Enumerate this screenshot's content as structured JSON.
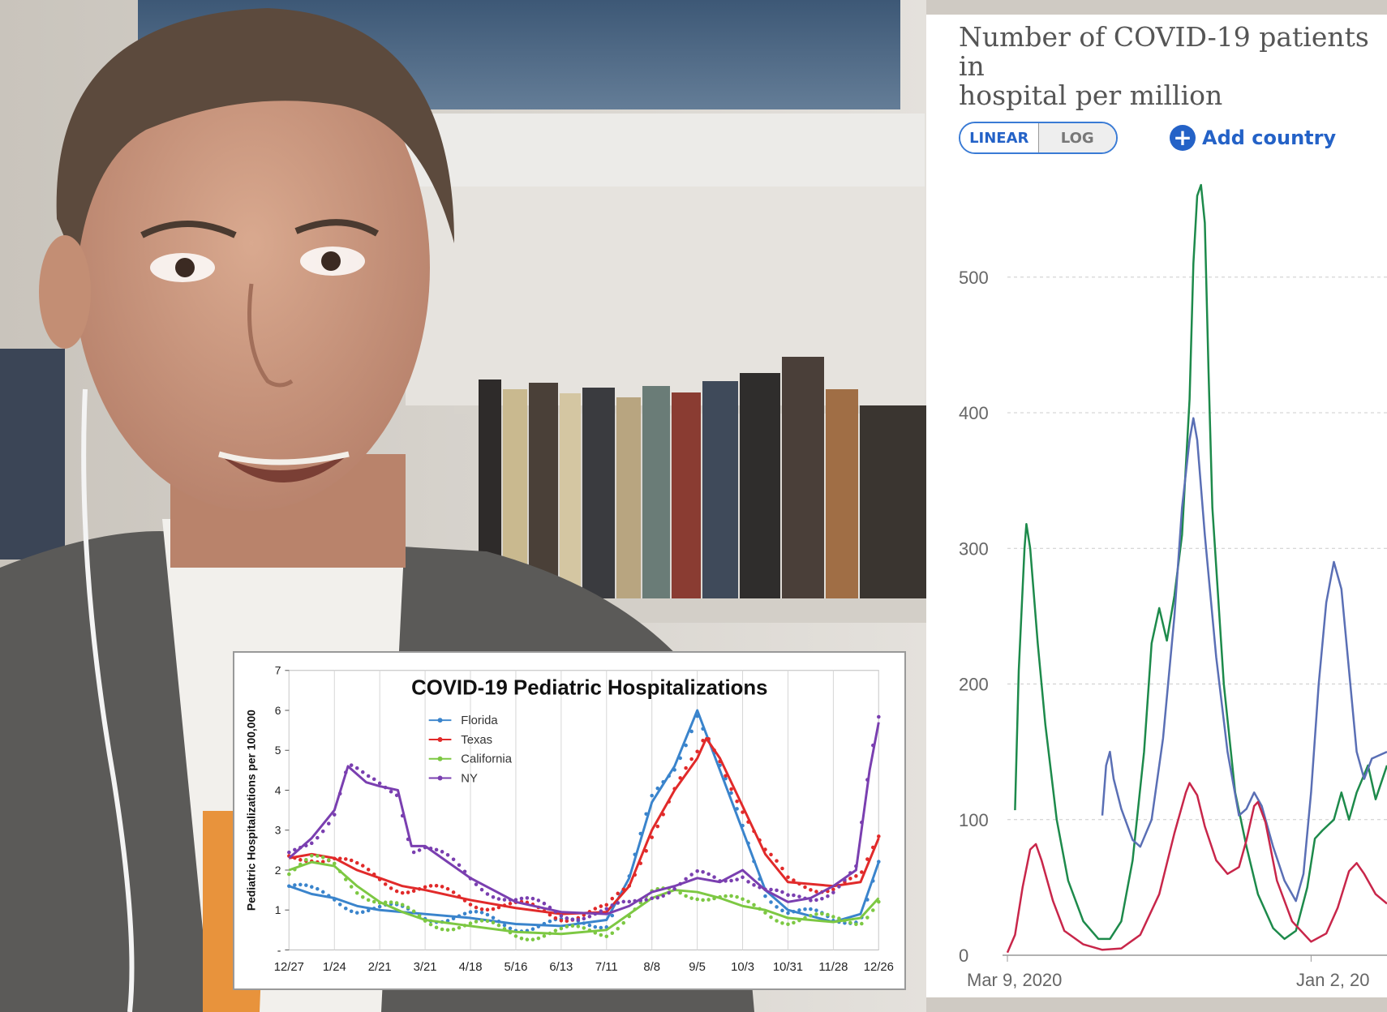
{
  "chart_data": [
    {
      "type": "line",
      "title": "Number of COVID-19 patients in\nhospital per million",
      "scale_options": [
        "LINEAR",
        "LOG"
      ],
      "selected_scale": "LINEAR",
      "add_label": "Add country",
      "ylim": [
        0,
        580
      ],
      "yticks": [
        0,
        100,
        200,
        300,
        400,
        500
      ],
      "x_start": "Mar 9, 2020",
      "x_tick_labels": [
        "Mar 9, 2020",
        "Jan 2, 20"
      ],
      "grid": true,
      "series": [
        {
          "color": "#1d8a4b",
          "points": [
            [
              0.02,
              107
            ],
            [
              0.03,
              210
            ],
            [
              0.045,
              300
            ],
            [
              0.05,
              318
            ],
            [
              0.06,
              300
            ],
            [
              0.08,
              230
            ],
            [
              0.1,
              170
            ],
            [
              0.13,
              100
            ],
            [
              0.16,
              55
            ],
            [
              0.2,
              25
            ],
            [
              0.24,
              12
            ],
            [
              0.27,
              12
            ],
            [
              0.3,
              25
            ],
            [
              0.33,
              70
            ],
            [
              0.36,
              150
            ],
            [
              0.38,
              230
            ],
            [
              0.4,
              256
            ],
            [
              0.42,
              232
            ],
            [
              0.44,
              265
            ],
            [
              0.46,
              310
            ],
            [
              0.48,
              410
            ],
            [
              0.49,
              510
            ],
            [
              0.5,
              560
            ],
            [
              0.51,
              568
            ],
            [
              0.52,
              540
            ],
            [
              0.53,
              430
            ],
            [
              0.54,
              330
            ],
            [
              0.57,
              200
            ],
            [
              0.6,
              120
            ],
            [
              0.63,
              80
            ],
            [
              0.66,
              45
            ],
            [
              0.7,
              20
            ],
            [
              0.73,
              12
            ],
            [
              0.76,
              18
            ],
            [
              0.79,
              50
            ],
            [
              0.81,
              86
            ],
            [
              0.83,
              92
            ],
            [
              0.86,
              100
            ],
            [
              0.88,
              120
            ],
            [
              0.9,
              100
            ],
            [
              0.92,
              120
            ],
            [
              0.95,
              140
            ],
            [
              0.97,
              115
            ],
            [
              1.0,
              140
            ]
          ]
        },
        {
          "color": "#5a6fb5",
          "points": [
            [
              0.25,
              103
            ],
            [
              0.26,
              140
            ],
            [
              0.27,
              150
            ],
            [
              0.28,
              130
            ],
            [
              0.3,
              108
            ],
            [
              0.33,
              85
            ],
            [
              0.35,
              80
            ],
            [
              0.38,
              100
            ],
            [
              0.41,
              160
            ],
            [
              0.44,
              250
            ],
            [
              0.46,
              330
            ],
            [
              0.48,
              380
            ],
            [
              0.49,
              396
            ],
            [
              0.5,
              380
            ],
            [
              0.52,
              310
            ],
            [
              0.55,
              220
            ],
            [
              0.58,
              150
            ],
            [
              0.61,
              103
            ],
            [
              0.63,
              108
            ],
            [
              0.65,
              120
            ],
            [
              0.67,
              110
            ],
            [
              0.7,
              80
            ],
            [
              0.73,
              55
            ],
            [
              0.76,
              40
            ],
            [
              0.78,
              60
            ],
            [
              0.8,
              120
            ],
            [
              0.82,
              200
            ],
            [
              0.84,
              260
            ],
            [
              0.86,
              290
            ],
            [
              0.88,
              270
            ],
            [
              0.9,
              210
            ],
            [
              0.92,
              150
            ],
            [
              0.94,
              130
            ],
            [
              0.96,
              145
            ],
            [
              1.0,
              150
            ]
          ]
        },
        {
          "color": "#c8264a",
          "points": [
            [
              0.0,
              2
            ],
            [
              0.02,
              15
            ],
            [
              0.04,
              50
            ],
            [
              0.06,
              78
            ],
            [
              0.075,
              82
            ],
            [
              0.09,
              70
            ],
            [
              0.12,
              40
            ],
            [
              0.15,
              18
            ],
            [
              0.2,
              8
            ],
            [
              0.25,
              4
            ],
            [
              0.3,
              5
            ],
            [
              0.35,
              15
            ],
            [
              0.4,
              45
            ],
            [
              0.44,
              90
            ],
            [
              0.47,
              120
            ],
            [
              0.48,
              127
            ],
            [
              0.5,
              118
            ],
            [
              0.52,
              95
            ],
            [
              0.55,
              70
            ],
            [
              0.58,
              60
            ],
            [
              0.61,
              65
            ],
            [
              0.63,
              85
            ],
            [
              0.65,
              110
            ],
            [
              0.66,
              113
            ],
            [
              0.68,
              98
            ],
            [
              0.71,
              55
            ],
            [
              0.75,
              25
            ],
            [
              0.8,
              10
            ],
            [
              0.84,
              16
            ],
            [
              0.87,
              35
            ],
            [
              0.9,
              62
            ],
            [
              0.92,
              68
            ],
            [
              0.94,
              60
            ],
            [
              0.97,
              45
            ],
            [
              1.0,
              38
            ]
          ]
        }
      ]
    },
    {
      "type": "line",
      "title": "COVID-19 Pediatric Hospitalizations",
      "ylabel": "Pediatric Hospitalizations per 100,000",
      "ylim": [
        0,
        7
      ],
      "yticks": [
        0,
        1,
        2,
        3,
        4,
        5,
        6,
        7
      ],
      "ytick_labels": [
        "-",
        "1",
        "2",
        "3",
        "4",
        "5",
        "6",
        "7"
      ],
      "categories": [
        "12/27",
        "1/24",
        "2/21",
        "3/21",
        "4/18",
        "5/16",
        "6/13",
        "7/11",
        "8/8",
        "9/5",
        "10/3",
        "10/31",
        "11/28",
        "12/26"
      ],
      "legend_position": "top-center",
      "series": [
        {
          "name": "Florida",
          "color": "#3a84cc",
          "points": [
            [
              0,
              1.6
            ],
            [
              0.5,
              1.4
            ],
            [
              1,
              1.3
            ],
            [
              1.5,
              1.1
            ],
            [
              2,
              1.0
            ],
            [
              3,
              0.9
            ],
            [
              4,
              0.8
            ],
            [
              5,
              0.65
            ],
            [
              6,
              0.6
            ],
            [
              7,
              0.75
            ],
            [
              7.5,
              1.8
            ],
            [
              8,
              3.7
            ],
            [
              8.5,
              4.6
            ],
            [
              9,
              6.0
            ],
            [
              9.5,
              4.5
            ],
            [
              10,
              3.0
            ],
            [
              10.5,
              1.5
            ],
            [
              11,
              1.0
            ],
            [
              12,
              0.7
            ],
            [
              12.6,
              0.9
            ],
            [
              13,
              2.2
            ]
          ]
        },
        {
          "name": "Texas",
          "color": "#e12a2a",
          "points": [
            [
              0,
              2.3
            ],
            [
              0.5,
              2.4
            ],
            [
              1,
              2.3
            ],
            [
              1.5,
              2.0
            ],
            [
              2,
              1.8
            ],
            [
              2.5,
              1.6
            ],
            [
              3,
              1.5
            ],
            [
              4,
              1.25
            ],
            [
              5,
              1.05
            ],
            [
              6,
              0.9
            ],
            [
              7,
              0.95
            ],
            [
              7.5,
              1.6
            ],
            [
              8,
              3.0
            ],
            [
              8.5,
              4.0
            ],
            [
              9,
              4.8
            ],
            [
              9.2,
              5.3
            ],
            [
              9.5,
              4.8
            ],
            [
              10,
              3.6
            ],
            [
              10.5,
              2.4
            ],
            [
              11,
              1.7
            ],
            [
              12,
              1.6
            ],
            [
              12.6,
              1.7
            ],
            [
              13,
              2.8
            ]
          ]
        },
        {
          "name": "California",
          "color": "#7dc843",
          "points": [
            [
              0,
              2.0
            ],
            [
              0.5,
              2.2
            ],
            [
              1,
              2.1
            ],
            [
              1.5,
              1.6
            ],
            [
              2,
              1.2
            ],
            [
              2.5,
              0.95
            ],
            [
              3,
              0.75
            ],
            [
              4,
              0.6
            ],
            [
              5,
              0.45
            ],
            [
              6,
              0.4
            ],
            [
              7,
              0.5
            ],
            [
              7.5,
              0.9
            ],
            [
              8,
              1.3
            ],
            [
              8.5,
              1.5
            ],
            [
              9,
              1.45
            ],
            [
              9.5,
              1.3
            ],
            [
              10,
              1.1
            ],
            [
              10.5,
              1.0
            ],
            [
              11,
              0.8
            ],
            [
              12,
              0.7
            ],
            [
              12.6,
              0.8
            ],
            [
              13,
              1.3
            ]
          ]
        },
        {
          "name": "NY",
          "color": "#7a3fb0",
          "points": [
            [
              0,
              2.3
            ],
            [
              0.5,
              2.8
            ],
            [
              1,
              3.5
            ],
            [
              1.3,
              4.6
            ],
            [
              1.7,
              4.2
            ],
            [
              2,
              4.1
            ],
            [
              2.4,
              4.0
            ],
            [
              2.7,
              2.6
            ],
            [
              3,
              2.6
            ],
            [
              3.5,
              2.2
            ],
            [
              4,
              1.8
            ],
            [
              4.5,
              1.5
            ],
            [
              5,
              1.2
            ],
            [
              6,
              0.95
            ],
            [
              7,
              0.9
            ],
            [
              7.5,
              1.1
            ],
            [
              8,
              1.45
            ],
            [
              8.5,
              1.6
            ],
            [
              9,
              1.8
            ],
            [
              9.5,
              1.7
            ],
            [
              10,
              2.0
            ],
            [
              10.5,
              1.5
            ],
            [
              11,
              1.2
            ],
            [
              11.5,
              1.3
            ],
            [
              12,
              1.6
            ],
            [
              12.5,
              2.0
            ],
            [
              12.8,
              4.5
            ],
            [
              13,
              5.7
            ]
          ]
        }
      ]
    }
  ]
}
